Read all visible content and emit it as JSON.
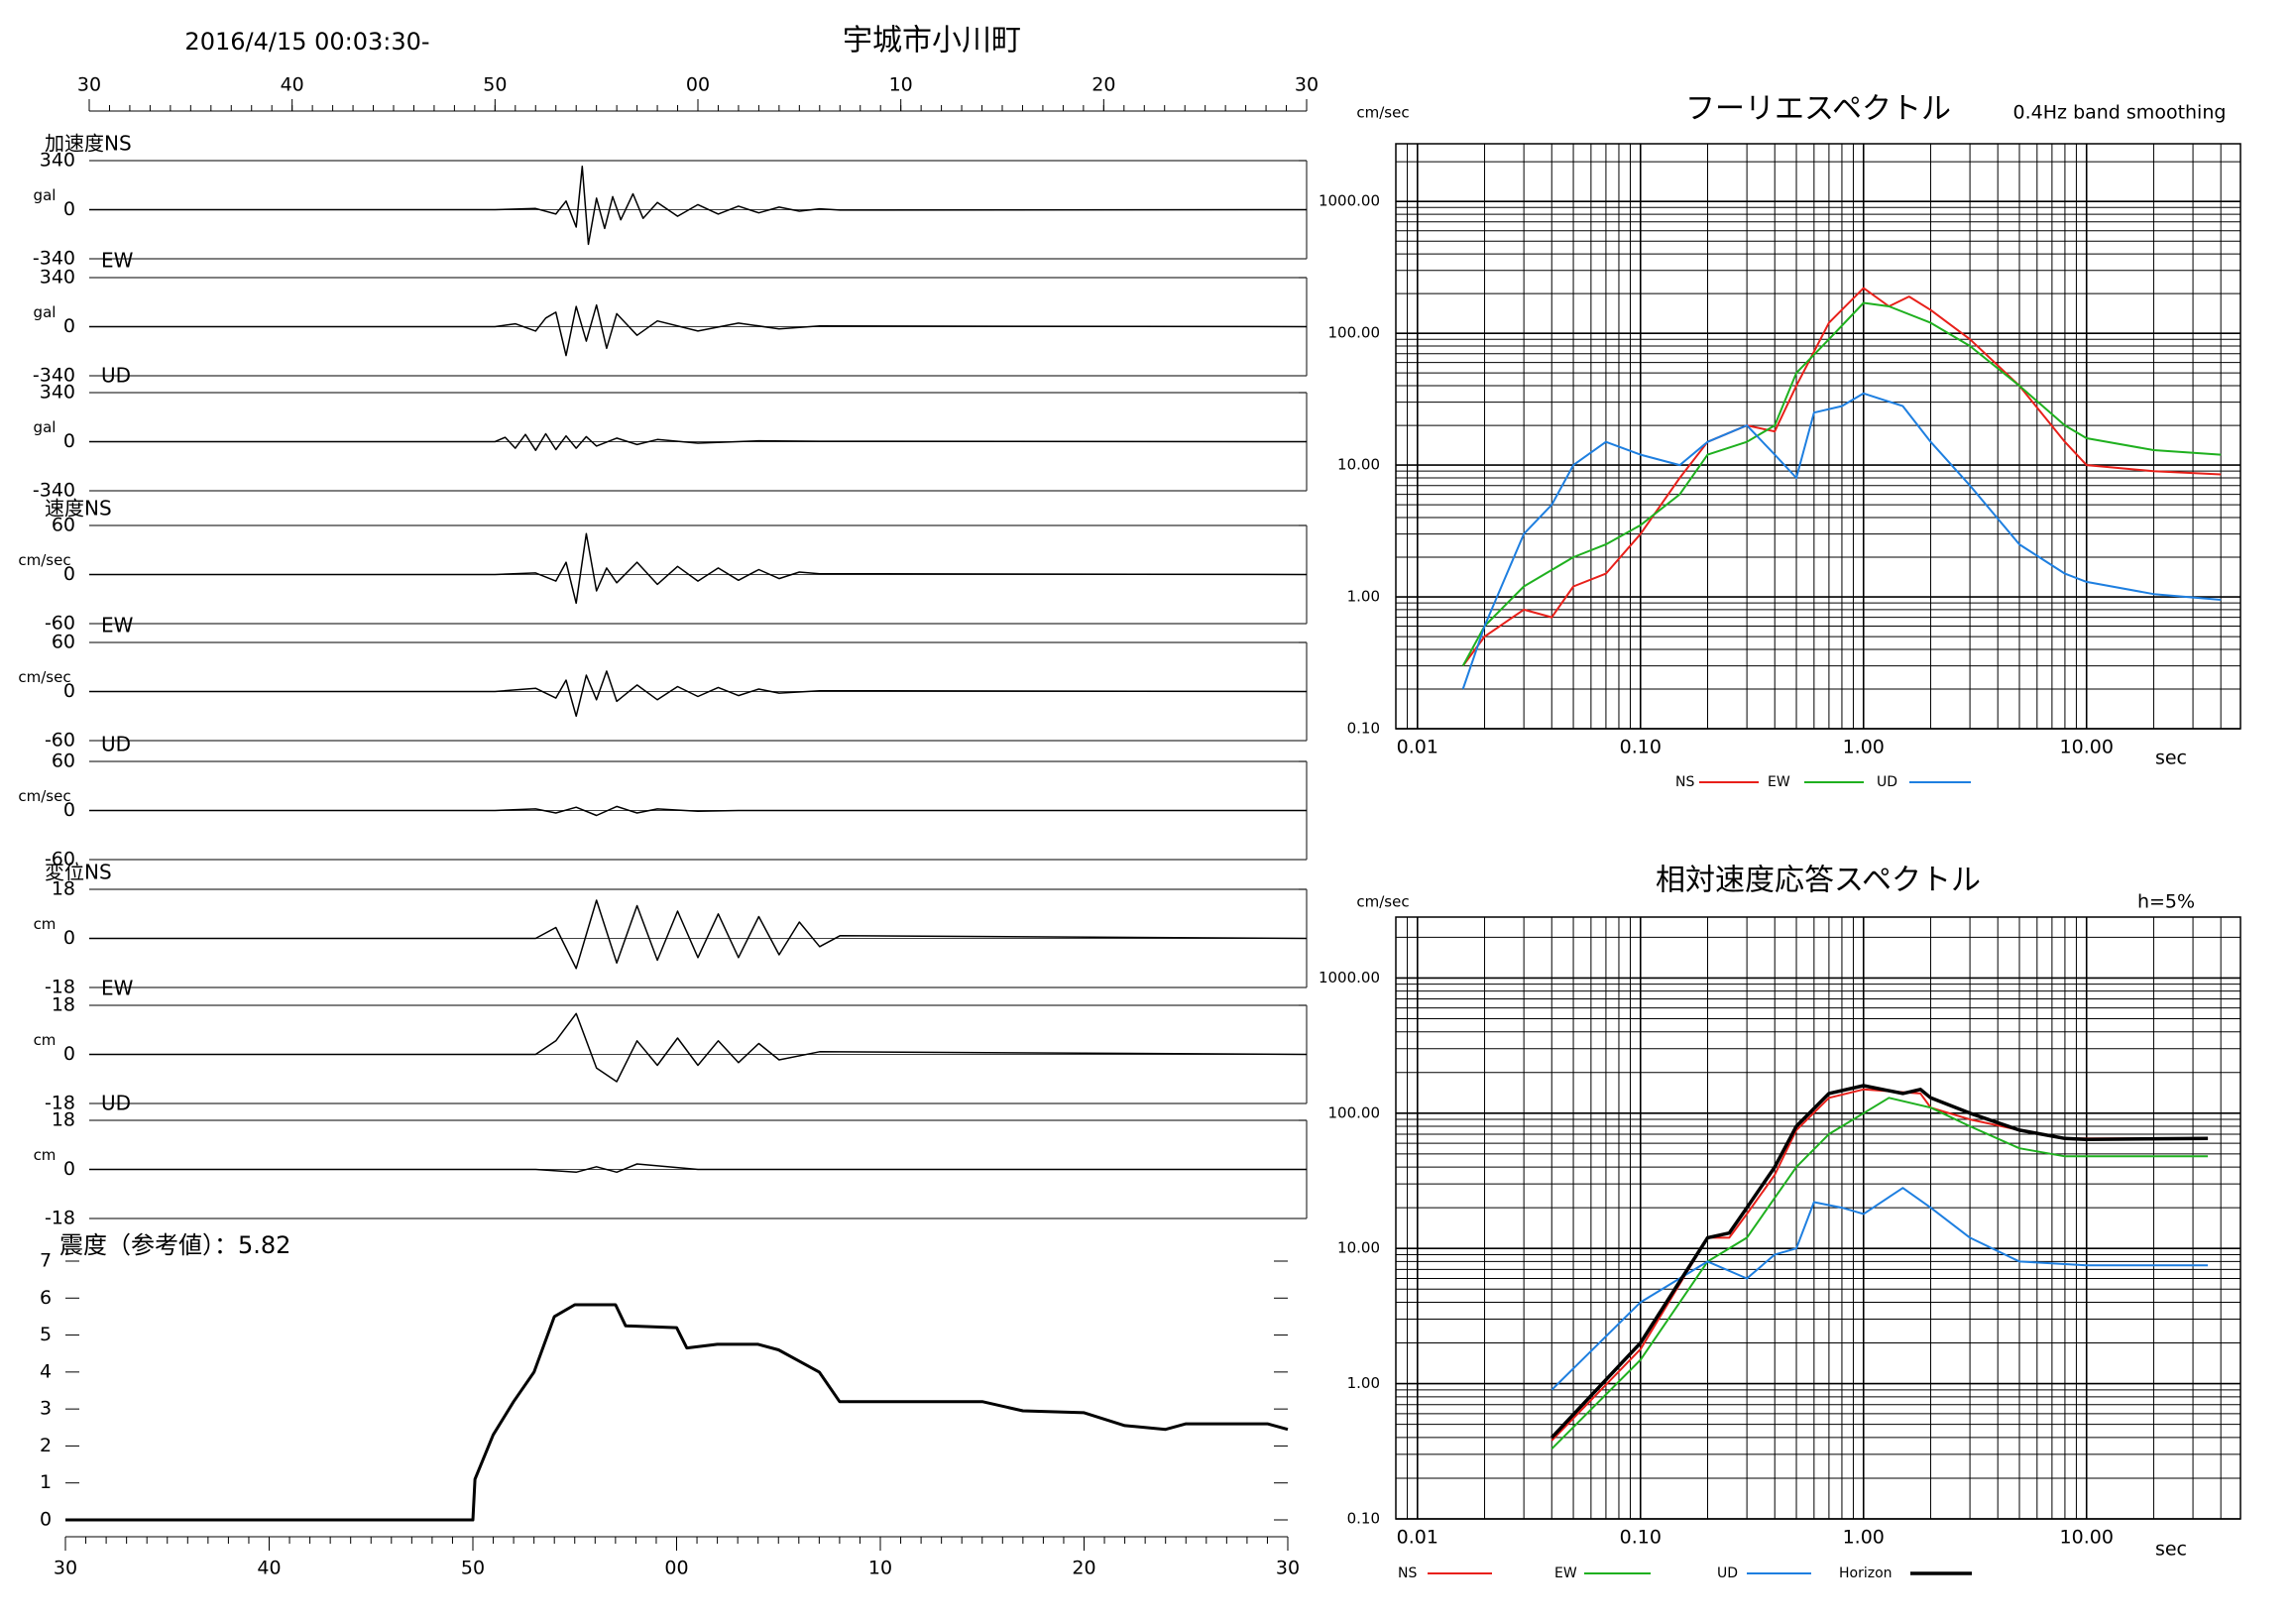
{
  "header": {
    "date": "2016/4/15 00:03:30-",
    "station": "宇城市小川町"
  },
  "time_axis": {
    "xlim": [
      30,
      90
    ],
    "xticks": [
      30,
      40,
      50,
      {
        "value": 60,
        "label": "00"
      },
      {
        "value": 70,
        "label": "10"
      },
      {
        "value": 80,
        "label": "20"
      },
      {
        "value": 90,
        "label": "30"
      }
    ]
  },
  "chart_data": [
    {
      "type": "wave",
      "label": "加速度NS",
      "unit": "gal",
      "ylim": [
        -340,
        340
      ],
      "yticks": [
        340,
        0,
        -340
      ],
      "x": [
        30,
        50,
        52,
        53,
        53.5,
        54,
        54.3,
        54.6,
        55,
        55.4,
        55.8,
        56.2,
        56.8,
        57.3,
        58,
        59,
        60,
        61,
        62,
        63,
        64,
        65,
        66,
        67,
        90
      ],
      "values": [
        0,
        0,
        8,
        -30,
        60,
        -120,
        300,
        -240,
        80,
        -130,
        90,
        -70,
        110,
        -60,
        50,
        -45,
        35,
        -30,
        25,
        -22,
        18,
        -10,
        6,
        -3,
        0
      ]
    },
    {
      "type": "wave",
      "label": "EW",
      "unit": "gal",
      "ylim": [
        -340,
        340
      ],
      "yticks": [
        340,
        0,
        -340
      ],
      "x": [
        30,
        50,
        51,
        52,
        52.5,
        53,
        53.5,
        54,
        54.5,
        55,
        55.5,
        56,
        57,
        58,
        60,
        62,
        64,
        66,
        90
      ],
      "values": [
        0,
        0,
        20,
        -30,
        60,
        100,
        -200,
        140,
        -100,
        150,
        -150,
        90,
        -60,
        40,
        -30,
        25,
        -15,
        5,
        0
      ]
    },
    {
      "type": "wave",
      "label": "UD",
      "unit": "gal",
      "ylim": [
        -340,
        340
      ],
      "yticks": [
        340,
        0,
        -340
      ],
      "x": [
        30,
        50,
        50.5,
        51,
        51.5,
        52,
        52.5,
        53,
        53.5,
        54,
        54.5,
        55,
        56,
        57,
        58,
        60,
        63,
        66,
        90
      ],
      "values": [
        0,
        0,
        30,
        -45,
        50,
        -60,
        55,
        -55,
        40,
        -45,
        35,
        -30,
        25,
        -20,
        15,
        -10,
        6,
        3,
        0
      ]
    },
    {
      "type": "wave",
      "label": "速度NS",
      "unit": "cm/sec",
      "ylim": [
        -60,
        60
      ],
      "yticks": [
        60,
        0,
        -60
      ],
      "x": [
        30,
        50,
        52,
        53,
        53.5,
        54,
        54.5,
        55,
        55.5,
        56,
        57,
        58,
        59,
        60,
        61,
        62,
        63,
        64,
        65,
        66,
        90
      ],
      "values": [
        0,
        0,
        2,
        -8,
        15,
        -35,
        50,
        -20,
        8,
        -10,
        15,
        -12,
        10,
        -8,
        8,
        -7,
        6,
        -5,
        3,
        1,
        0
      ]
    },
    {
      "type": "wave",
      "label": "EW",
      "unit": "cm/sec",
      "ylim": [
        -60,
        60
      ],
      "yticks": [
        60,
        0,
        -60
      ],
      "x": [
        30,
        50,
        52,
        53,
        53.5,
        54,
        54.5,
        55,
        55.5,
        56,
        57,
        58,
        59,
        60,
        61,
        62,
        63,
        64,
        66,
        90
      ],
      "values": [
        0,
        0,
        4,
        -8,
        14,
        -30,
        20,
        -10,
        25,
        -12,
        8,
        -10,
        6,
        -6,
        5,
        -5,
        3,
        -2,
        1,
        0
      ]
    },
    {
      "type": "wave",
      "label": "UD",
      "unit": "cm/sec",
      "ylim": [
        -60,
        60
      ],
      "yticks": [
        60,
        0,
        -60
      ],
      "x": [
        30,
        50,
        52,
        53,
        54,
        55,
        56,
        57,
        58,
        60,
        62,
        90
      ],
      "values": [
        0,
        0,
        2,
        -3,
        4,
        -6,
        5,
        -3,
        2,
        -1,
        0,
        0
      ]
    },
    {
      "type": "wave",
      "label": "変位NS",
      "unit": "cm",
      "ylim": [
        -18,
        18
      ],
      "yticks": [
        18,
        0,
        -18
      ],
      "x": [
        30,
        50,
        52,
        53,
        54,
        55,
        56,
        57,
        58,
        59,
        60,
        61,
        62,
        63,
        64,
        65,
        66,
        67,
        90
      ],
      "values": [
        0,
        0,
        0,
        4,
        -11,
        14,
        -9,
        12,
        -8,
        10,
        -7,
        9,
        -7,
        8,
        -6,
        6,
        -3,
        1,
        0
      ]
    },
    {
      "type": "wave",
      "label": "EW",
      "unit": "cm",
      "ylim": [
        -18,
        18
      ],
      "yticks": [
        18,
        0,
        -18
      ],
      "x": [
        30,
        50,
        52,
        53,
        54,
        55,
        56,
        57,
        58,
        59,
        60,
        61,
        62,
        63,
        64,
        66,
        90
      ],
      "values": [
        0,
        0,
        0,
        5,
        15,
        -5,
        -10,
        5,
        -4,
        6,
        -4,
        5,
        -3,
        4,
        -2,
        1,
        0
      ]
    },
    {
      "type": "wave",
      "label": "UD",
      "unit": "cm",
      "ylim": [
        -18,
        18
      ],
      "yticks": [
        18,
        0,
        -18
      ],
      "x": [
        30,
        50,
        52,
        54,
        55,
        56,
        57,
        60,
        90
      ],
      "values": [
        0,
        0,
        0,
        -1,
        1,
        -1,
        2,
        0,
        0
      ]
    },
    {
      "type": "intensity",
      "title": "震度（参考値）：5.82",
      "xlim": [
        30,
        90
      ],
      "xticks": [
        30,
        40,
        50,
        {
          "value": 60,
          "label": "00"
        },
        {
          "value": 70,
          "label": "10"
        },
        {
          "value": 80,
          "label": "20"
        },
        {
          "value": 90,
          "label": "30"
        }
      ],
      "ylim": [
        0,
        7
      ],
      "yticks": [
        0,
        1,
        2,
        3,
        4,
        5,
        6,
        7
      ],
      "x": [
        30,
        50,
        50.1,
        51,
        52,
        53,
        54,
        55,
        57,
        57.5,
        60,
        60.5,
        62,
        64,
        65,
        66,
        67,
        68,
        72,
        75,
        77,
        80,
        82,
        84,
        85,
        89,
        90
      ],
      "values": [
        0,
        0,
        1.1,
        2.3,
        3.2,
        4,
        5.5,
        5.82,
        5.82,
        5.25,
        5.2,
        4.65,
        4.75,
        4.75,
        4.6,
        4.3,
        4,
        3.2,
        3.2,
        3.2,
        2.95,
        2.9,
        2.55,
        2.45,
        2.6,
        2.6,
        2.45
      ]
    },
    {
      "type": "line",
      "title": "フーリエスペクトル",
      "note": "0.4Hz band smoothing",
      "ylabel": "cm/sec",
      "xlabel": "sec",
      "log_x": true,
      "log_y": true,
      "grid": true,
      "xlim": [
        0.008,
        49
      ],
      "ylim": [
        0.1,
        2740
      ],
      "xticks": [
        0.01,
        {
          "value": 0.1,
          "label": "0.10"
        },
        {
          "value": 1,
          "label": "1.00"
        },
        {
          "value": 10,
          "label": "10.00"
        }
      ],
      "yticks": [
        {
          "value": 0.1,
          "label": "0.10"
        },
        {
          "value": 1,
          "label": "1.00"
        },
        {
          "value": 10,
          "label": "10.00"
        },
        {
          "value": 100,
          "label": "100.00"
        },
        {
          "value": 1000,
          "label": "1000.00"
        }
      ],
      "series": [
        {
          "name": "NS",
          "color": "#e8201a",
          "x": [
            0.016,
            0.02,
            0.03,
            0.04,
            0.05,
            0.07,
            0.1,
            0.15,
            0.2,
            0.3,
            0.4,
            0.5,
            0.7,
            1.0,
            1.3,
            1.6,
            2,
            3,
            5,
            8,
            10,
            20,
            40
          ],
          "values": [
            0.3,
            0.5,
            0.8,
            0.7,
            1.2,
            1.5,
            3,
            8,
            15,
            20,
            18,
            40,
            120,
            220,
            160,
            190,
            150,
            90,
            40,
            15,
            10,
            9,
            8.5
          ]
        },
        {
          "name": "EW",
          "color": "#1fb01f",
          "x": [
            0.016,
            0.02,
            0.03,
            0.05,
            0.07,
            0.1,
            0.15,
            0.2,
            0.3,
            0.4,
            0.5,
            0.7,
            1.0,
            1.3,
            2,
            3,
            5,
            8,
            10,
            20,
            40
          ],
          "values": [
            0.3,
            0.6,
            1.2,
            2,
            2.5,
            3.5,
            6,
            12,
            15,
            20,
            50,
            90,
            170,
            160,
            120,
            80,
            40,
            20,
            16,
            13,
            12
          ]
        },
        {
          "name": "UD",
          "color": "#1e7fe0",
          "x": [
            0.016,
            0.02,
            0.03,
            0.04,
            0.05,
            0.07,
            0.1,
            0.15,
            0.2,
            0.3,
            0.4,
            0.5,
            0.6,
            0.8,
            1.0,
            1.5,
            2,
            3,
            5,
            8,
            10,
            20,
            40
          ],
          "values": [
            0.2,
            0.6,
            3,
            5,
            10,
            15,
            12,
            10,
            15,
            20,
            12,
            8,
            25,
            28,
            35,
            28,
            15,
            7,
            2.5,
            1.5,
            1.3,
            1.05,
            0.95
          ]
        }
      ]
    },
    {
      "type": "line",
      "title": "相対速度応答スペクトル",
      "note": "h=5%",
      "ylabel": "cm/sec",
      "xlabel": "sec",
      "log_x": true,
      "log_y": true,
      "grid": true,
      "xlim": [
        0.008,
        49
      ],
      "ylim": [
        0.1,
        2820
      ],
      "xticks": [
        0.01,
        {
          "value": 0.1,
          "label": "0.10"
        },
        {
          "value": 1,
          "label": "1.00"
        },
        {
          "value": 10,
          "label": "10.00"
        }
      ],
      "yticks": [
        {
          "value": 0.1,
          "label": "0.10"
        },
        {
          "value": 1,
          "label": "1.00"
        },
        {
          "value": 10,
          "label": "10.00"
        },
        {
          "value": 100,
          "label": "100.00"
        },
        {
          "value": 1000,
          "label": "1000.00"
        }
      ],
      "series": [
        {
          "name": "NS",
          "color": "#e8201a",
          "x": [
            0.04,
            0.1,
            0.2,
            0.25,
            0.3,
            0.4,
            0.5,
            0.7,
            1.0,
            1.8,
            2,
            3,
            5,
            8,
            35
          ],
          "values": [
            0.38,
            1.8,
            12,
            12,
            18,
            35,
            75,
            130,
            150,
            140,
            110,
            90,
            75,
            65,
            65
          ]
        },
        {
          "name": "EW",
          "color": "#1fb01f",
          "x": [
            0.04,
            0.1,
            0.2,
            0.3,
            0.5,
            0.7,
            1.0,
            1.3,
            2,
            3,
            5,
            8,
            35
          ],
          "values": [
            0.33,
            1.5,
            8,
            12,
            40,
            70,
            100,
            130,
            110,
            80,
            55,
            48,
            48
          ]
        },
        {
          "name": "UD",
          "color": "#1e7fe0",
          "x": [
            0.04,
            0.1,
            0.2,
            0.3,
            0.4,
            0.5,
            0.6,
            0.8,
            1.0,
            1.5,
            2,
            3,
            5,
            10,
            35
          ],
          "values": [
            0.9,
            4,
            8,
            6,
            9,
            10,
            22,
            20,
            18,
            28,
            20,
            12,
            8,
            7.5,
            7.5
          ]
        },
        {
          "name": "Horizon",
          "color": "#000000",
          "x": [
            0.04,
            0.1,
            0.2,
            0.25,
            0.3,
            0.4,
            0.5,
            0.7,
            1.0,
            1.5,
            1.8,
            2,
            3,
            5,
            8,
            10,
            35
          ],
          "values": [
            0.4,
            2,
            12,
            13,
            20,
            40,
            80,
            140,
            160,
            140,
            150,
            130,
            100,
            75,
            65,
            64,
            65
          ]
        }
      ]
    }
  ]
}
